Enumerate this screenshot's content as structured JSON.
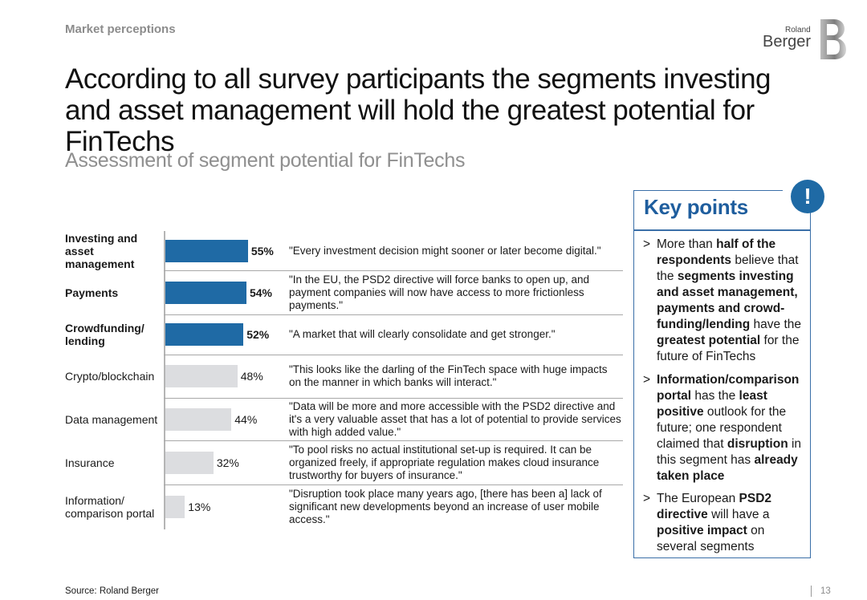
{
  "header": {
    "section": "Market perceptions",
    "logo_line1": "Roland",
    "logo_line2": "Berger"
  },
  "title": "According to all survey participants the segments investing and asset management will hold the greatest potential for FinTechs",
  "subtitle": "Assessment of segment potential for FinTechs",
  "colors": {
    "highlight_bar": "#1f6aa5",
    "normal_bar": "#dcdde0",
    "accent": "#1f5e9e"
  },
  "chart_data": {
    "type": "bar",
    "orientation": "horizontal",
    "title": "Assessment of segment potential for FinTechs",
    "unit": "%",
    "xlim": [
      0,
      100
    ],
    "categories": [
      "Investing and asset management",
      "Payments",
      "Crowdfunding/ lending",
      "Crypto/blockchain",
      "Data management",
      "Insurance",
      "Information/ comparison portal"
    ],
    "values": [
      55,
      54,
      52,
      48,
      44,
      32,
      13
    ],
    "highlighted": [
      true,
      true,
      true,
      false,
      false,
      false,
      false
    ],
    "value_labels": [
      "55%",
      "54%",
      "52%",
      "48%",
      "44%",
      "32%",
      "13%"
    ],
    "quotes": [
      "\"Every investment decision might sooner or later become digital.\"",
      "\"In the EU, the PSD2 directive will force banks to open up, and payment companies will now have access to more frictionless payments.\"",
      "\"A market that will clearly consolidate and get stronger.\"",
      "\"This looks like the darling of the FinTech space with huge impacts on the manner in which banks will interact.\"",
      "\"Data will be more and more accessible with the PSD2 directive and it's a very valuable asset that has a lot of potential to provide services with high added value.\"",
      "\"To pool risks no actual institutional set-up is required. It can be organized freely, if appropriate regulation makes cloud insurance trustworthy for buyers of insurance.\"",
      "\"Disruption took place many years ago, [there has been a] lack of significant new developments beyond an increase of user mobile access.\""
    ]
  },
  "key_points": {
    "title": "Key points",
    "badge": "!",
    "marker": ">",
    "bullets": [
      [
        {
          "t": "More than ",
          "b": false
        },
        {
          "t": "half of the respondents",
          "b": true
        },
        {
          "t": " believe that the ",
          "b": false
        },
        {
          "t": "segments investing and asset management, payments and crowd-funding/lending",
          "b": true
        },
        {
          "t": " have the ",
          "b": false
        },
        {
          "t": "greatest potential",
          "b": true
        },
        {
          "t": " for the future of FinTechs",
          "b": false
        }
      ],
      [
        {
          "t": "Information/comparison portal",
          "b": true
        },
        {
          "t": " has the ",
          "b": false
        },
        {
          "t": "least positive",
          "b": true
        },
        {
          "t": " outlook for the future; one respondent claimed that ",
          "b": false
        },
        {
          "t": "disruption",
          "b": true
        },
        {
          "t": " in this segment has ",
          "b": false
        },
        {
          "t": "already taken place",
          "b": true
        }
      ],
      [
        {
          "t": "The European ",
          "b": false
        },
        {
          "t": "PSD2 directive",
          "b": true
        },
        {
          "t": " will have a ",
          "b": false
        },
        {
          "t": "positive impact",
          "b": true
        },
        {
          "t": " on several segments",
          "b": false
        }
      ]
    ]
  },
  "footer": {
    "source": "Source: Roland Berger",
    "page": "13"
  }
}
